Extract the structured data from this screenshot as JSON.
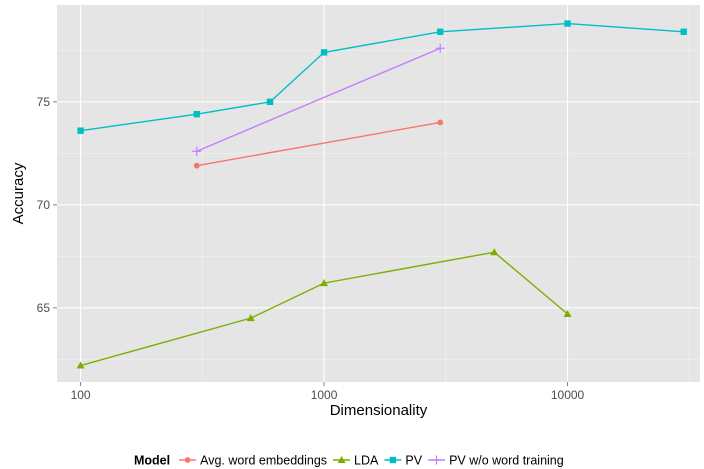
{
  "chart_data": {
    "type": "line",
    "xlabel": "Dimensionality",
    "ylabel": "Accuracy",
    "x_scale": "log10",
    "xlim": [
      80,
      35000
    ],
    "ylim": [
      61.4,
      79.7
    ],
    "x_ticks": [
      100,
      1000,
      10000
    ],
    "x_tick_labels": [
      "100",
      "1000",
      "10000"
    ],
    "y_ticks": [
      65,
      70,
      75
    ],
    "y_tick_labels": [
      "65",
      "70",
      "75"
    ],
    "grid": true,
    "legend": {
      "title": "Model",
      "position": "bottom"
    },
    "series": [
      {
        "name": "Avg. word embeddings",
        "color": "#F8766D",
        "marker": "circle",
        "points": [
          [
            300,
            71.9
          ],
          [
            3000,
            74.0
          ]
        ]
      },
      {
        "name": "LDA",
        "color": "#7CAE00",
        "marker": "triangle",
        "points": [
          [
            100,
            62.2
          ],
          [
            500,
            64.5
          ],
          [
            1000,
            66.2
          ],
          [
            5000,
            67.7
          ],
          [
            10000,
            64.7
          ]
        ]
      },
      {
        "name": "PV",
        "color": "#00BFC4",
        "marker": "square",
        "points": [
          [
            100,
            73.6
          ],
          [
            300,
            74.4
          ],
          [
            600,
            75.0
          ],
          [
            1000,
            77.4
          ],
          [
            3000,
            78.4
          ],
          [
            10000,
            78.8
          ],
          [
            30000,
            78.4
          ]
        ]
      },
      {
        "name": "PV w/o word training",
        "color": "#C77CFF",
        "marker": "plus",
        "points": [
          [
            300,
            72.6
          ],
          [
            3000,
            77.6
          ]
        ]
      }
    ]
  }
}
